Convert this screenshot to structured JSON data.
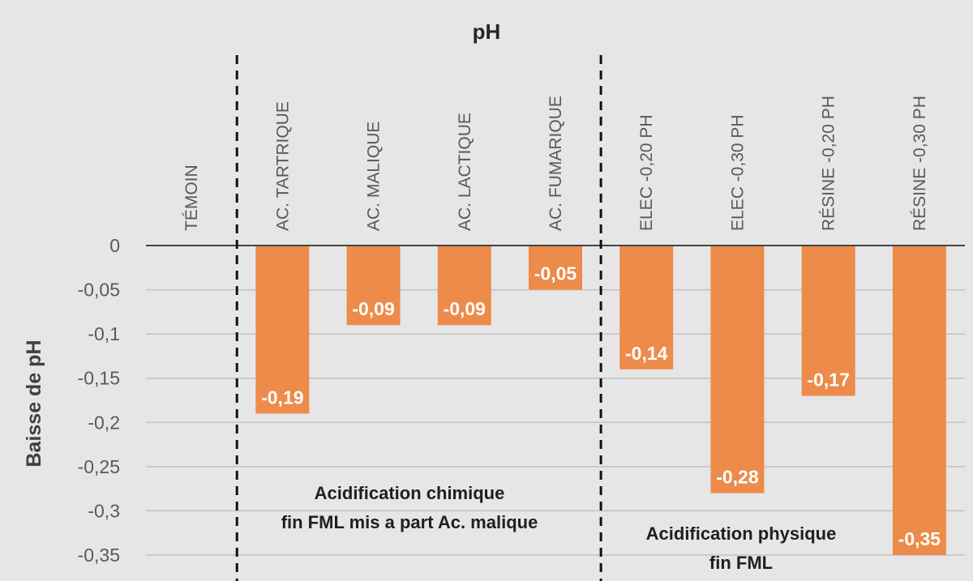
{
  "chart_data": {
    "type": "bar",
    "title": "pH",
    "xlabel": "",
    "ylabel": "Baisse de pH",
    "categories": [
      "TÉMOIN",
      "AC. TARTRIQUE",
      "AC. MALIQUE",
      "AC. LACTIQUE",
      "AC. FUMARIQUE",
      "ELEC -0,20 PH",
      "ELEC -0,30 PH",
      "RÉSINE -0,20 PH",
      "RÉSINE -0,30 PH"
    ],
    "values": [
      0,
      -0.19,
      -0.09,
      -0.09,
      -0.05,
      -0.14,
      -0.28,
      -0.17,
      -0.35
    ],
    "data_labels": [
      "",
      "-0,19",
      "-0,09",
      "-0,09",
      "-0,05",
      "-0,14",
      "-0,28",
      "-0,17",
      "-0,35"
    ],
    "ylim": [
      -0.35,
      0
    ],
    "yticks": [
      0,
      -0.05,
      -0.1,
      -0.15,
      -0.2,
      -0.25,
      -0.3,
      -0.35
    ],
    "ytick_labels": [
      "0",
      "-0,05",
      "-0,1",
      "-0,15",
      "-0,2",
      "-0,25",
      "-0,3",
      "-0,35"
    ],
    "grid": true,
    "legend": "none",
    "bar_color": "#ed8b4a",
    "groups": [
      {
        "lines": [
          "Acidification chimique",
          "fin FML mis a part Ac. malique"
        ],
        "categories": [
          1,
          2,
          3,
          4
        ]
      },
      {
        "lines": [
          "Acidification physique",
          "fin FML"
        ],
        "categories": [
          5,
          6,
          7,
          8
        ]
      }
    ]
  }
}
